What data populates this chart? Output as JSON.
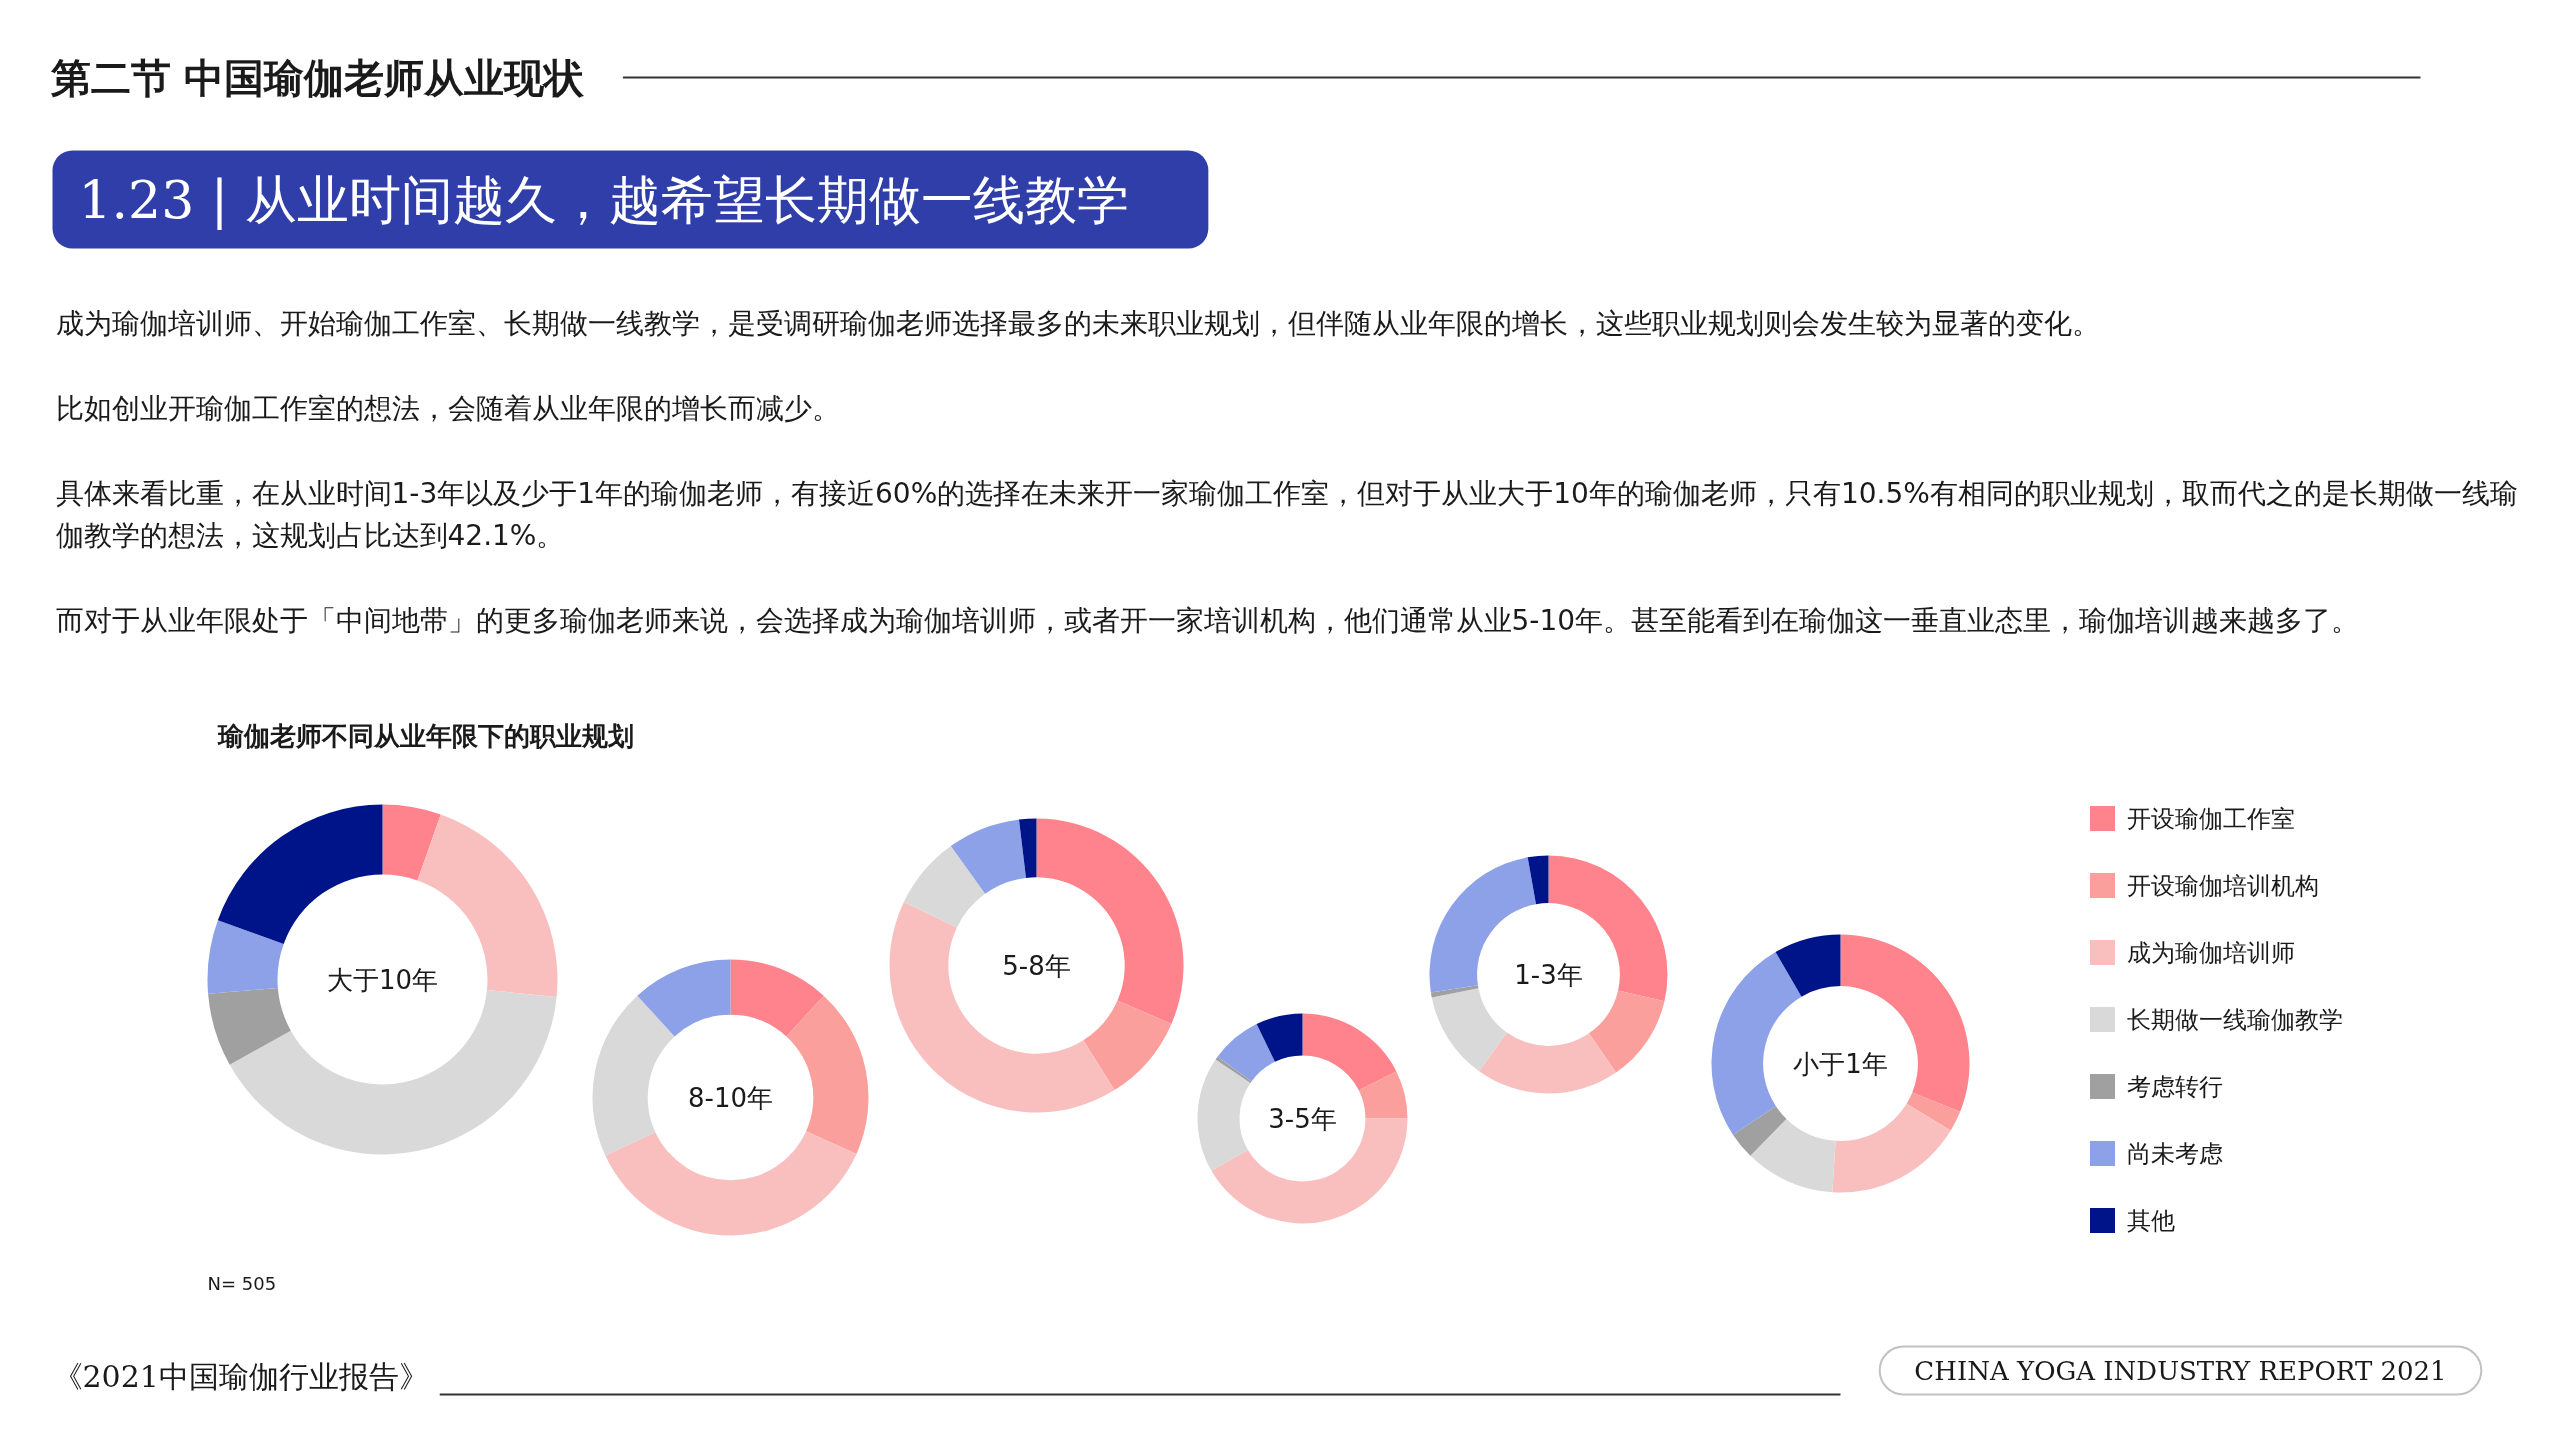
{
  "chart_data": [
    {
      "type": "other",
      "title": "第二节 中国瑜伽老师从业现状",
      "subtitle": "1.23 | 从业时间越久，越希望长期做一线教学",
      "annotations": [
        "成为瑜伽培训师、开始瑜伽工作室、长期做一线教学，是受调研瑜伽老师选择最多的未来职业规划，但伴随从业年限的增长，这些职业规划则会发生较为显著的变化。",
        "比如创业开瑜伽工作室的想法，会随着从业年限的增长而减少。",
        "具体来看比重，在从业时间1-3年以及少于1年的瑜伽老师，有接近60%的选择在未来开一家瑜伽工作室，但对于从业大于10年的瑜伽老师，只有10.5%有相同的职业规划，取而代之的是长期做一线瑜伽教学的想法，这规划占比达到42.1%。",
        "而对于从业年限处于「中间地带」的更多瑜伽老师来说，会选择成为瑜伽培训师，或者开一家培训机构，他们通常从业5-10年。甚至能看到在瑜伽这一垂直业态里，瑜伽培训越来越多了。"
      ]
    },
    {
      "type": "donut",
      "title": "瑜伽老师不同从业年限下的职业规划",
      "categories": [
        "开设瑜伽工作室",
        "开设瑜伽培训机构",
        "成为瑜伽培训师",
        "长期做一线瑜伽教学",
        "考虑转行",
        "尚未考虑",
        "其他"
      ],
      "colors": [
        "#ff838c",
        "#fa9f9c",
        "#f9bfbf",
        "#d9d9d9",
        "#a0a0a0",
        "#8da1e9",
        "#001489"
      ],
      "series": [
        {
          "name": "大于10年",
          "values": [
            5.4,
            0,
            21.2,
            40.3,
            6.8,
            6.8,
            19.5
          ]
        },
        {
          "name": "8-10年",
          "values": [
            11.8,
            19.9,
            36.4,
            20.1,
            0,
            11.8,
            0
          ]
        },
        {
          "name": "5-8年",
          "values": [
            31.5,
            9.6,
            41.0,
            8.0,
            0,
            8.0,
            1.9
          ]
        },
        {
          "name": "3-5年",
          "values": [
            17.6,
            7.4,
            41.7,
            17.8,
            0.5,
            7.8,
            7.2
          ]
        },
        {
          "name": "1-3年",
          "values": [
            28.6,
            11.8,
            19.5,
            12.0,
            0.7,
            24.6,
            2.8
          ]
        },
        {
          "name": "小于1年",
          "values": [
            31.1,
            2.6,
            17.3,
            11.3,
            3.4,
            25.9,
            8.4
          ]
        }
      ],
      "legend": "right",
      "annotations": [
        "N= 505",
        "《2021中国瑜伽行业报告》",
        "CHINA YOGA INDUSTRY REPORT 2021"
      ]
    }
  ]
}
